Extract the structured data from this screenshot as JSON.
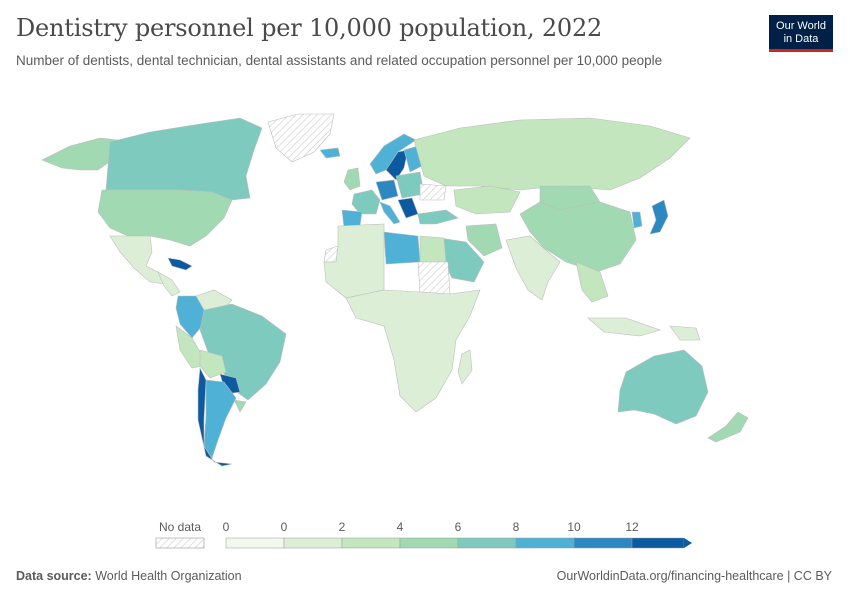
{
  "title": "Dentistry personnel per 10,000 population, 2022",
  "subtitle": "Number of dentists, dental technician, dental assistants and related occupation personnel per 10,000 people",
  "logo": {
    "line1": "Our World",
    "line2": "in Data"
  },
  "footer": {
    "source_label": "Data source:",
    "source_value": "World Health Organization",
    "url": "OurWorldinData.org/financing-healthcare | CC BY"
  },
  "legend": {
    "no_data_label": "No data",
    "tick_labels": [
      "0",
      "0",
      "2",
      "4",
      "6",
      "8",
      "10",
      "12"
    ],
    "colors": [
      "#f2f8ec",
      "#dcefd6",
      "#c3e6bf",
      "#a1d9b3",
      "#7ecabf",
      "#4fb1d6",
      "#2d88c2",
      "#0c5aa0"
    ]
  },
  "regions": [
    {
      "name": "Canada",
      "level": 4
    },
    {
      "name": "Alaska",
      "level": 3
    },
    {
      "name": "United States",
      "level": 3
    },
    {
      "name": "Greenland",
      "level": -1
    },
    {
      "name": "Mexico",
      "level": 1
    },
    {
      "name": "Cuba",
      "level": 7
    },
    {
      "name": "Central America",
      "level": 1
    },
    {
      "name": "Colombia",
      "level": 5
    },
    {
      "name": "Venezuela",
      "level": 1
    },
    {
      "name": "Brazil",
      "level": 4
    },
    {
      "name": "Peru",
      "level": 2
    },
    {
      "name": "Bolivia",
      "level": 2
    },
    {
      "name": "Paraguay",
      "level": 7
    },
    {
      "name": "Chile",
      "level": 7
    },
    {
      "name": "Argentina",
      "level": 5
    },
    {
      "name": "Uruguay",
      "level": 3
    },
    {
      "name": "Iceland",
      "level": 5
    },
    {
      "name": "United Kingdom",
      "level": 3
    },
    {
      "name": "Norway",
      "level": 5
    },
    {
      "name": "Sweden",
      "level": 7
    },
    {
      "name": "Finland",
      "level": 5
    },
    {
      "name": "Spain",
      "level": 5
    },
    {
      "name": "France",
      "level": 4
    },
    {
      "name": "Germany",
      "level": 6
    },
    {
      "name": "Italy",
      "level": 5
    },
    {
      "name": "Balkans",
      "level": 7
    },
    {
      "name": "Eastern Europe",
      "level": 4
    },
    {
      "name": "Ukraine",
      "level": -1
    },
    {
      "name": "Russia",
      "level": 2
    },
    {
      "name": "Kazakhstan",
      "level": 2
    },
    {
      "name": "Mongolia",
      "level": 3
    },
    {
      "name": "China",
      "level": 3
    },
    {
      "name": "Japan",
      "level": 6
    },
    {
      "name": "Korea",
      "level": 5
    },
    {
      "name": "Turkey",
      "level": 4
    },
    {
      "name": "Iran",
      "level": 3
    },
    {
      "name": "Saudi Arabia",
      "level": 4
    },
    {
      "name": "India",
      "level": 1
    },
    {
      "name": "Southeast Asia",
      "level": 2
    },
    {
      "name": "Indonesia",
      "level": 1
    },
    {
      "name": "Papua New Guinea",
      "level": 1
    },
    {
      "name": "Australia",
      "level": 4
    },
    {
      "name": "New Zealand",
      "level": 3
    },
    {
      "name": "North Africa",
      "level": 1
    },
    {
      "name": "Libya",
      "level": 5
    },
    {
      "name": "Egypt",
      "level": 2
    },
    {
      "name": "Western Sahara",
      "level": -1
    },
    {
      "name": "Sudan",
      "level": -1
    },
    {
      "name": "Sub-Saharan Africa",
      "level": 1
    },
    {
      "name": "Madagascar",
      "level": 1
    }
  ]
}
